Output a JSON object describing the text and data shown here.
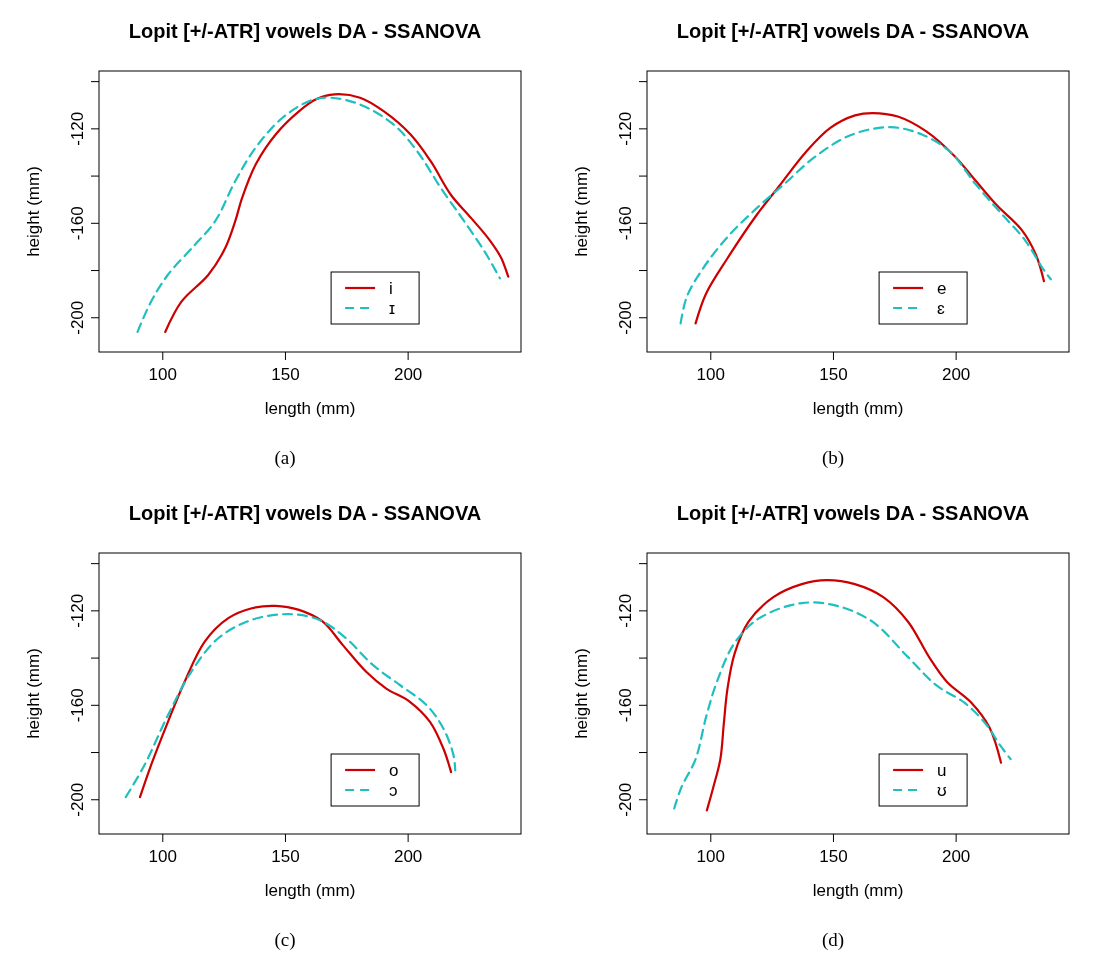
{
  "chart_data": [
    {
      "type": "line",
      "title": "Lopit [+/-ATR] vowels DA - SSANOVA",
      "xlabel": "length (mm)",
      "ylabel": "height (mm)",
      "xlim": [
        74,
        246
      ],
      "ylim": [
        -214.5,
        -95.5
      ],
      "xticks": [
        100,
        150,
        200
      ],
      "yticks": [
        {
          "value": -100,
          "label": null
        },
        -120,
        {
          "value": -140,
          "label": null
        },
        -160,
        {
          "value": -180,
          "label": null
        },
        -200
      ],
      "legend": "bottom right",
      "annotations": [
        "(a)"
      ],
      "series": [
        {
          "name": "i",
          "color": "#cc0000",
          "line_style": "solid",
          "x": [
            101,
            107.6,
            118.5,
            125.4,
            129.5,
            132.3,
            137.8,
            146,
            155.6,
            162.5,
            170,
            180.4,
            190,
            201,
            209.2,
            217.4,
            225.7,
            232.6,
            238,
            240.8
          ],
          "values": [
            -206,
            -193.2,
            -181.9,
            -170.6,
            -159.2,
            -149.3,
            -135.2,
            -122.4,
            -112.5,
            -107.5,
            -105.4,
            -106.8,
            -112.5,
            -122.4,
            -133.7,
            -147.9,
            -157.8,
            -166.3,
            -174.8,
            -182.6
          ]
        },
        {
          "name": "ɪ",
          "color": "#1fbfbf",
          "line_style": "dashed",
          "x": [
            89.7,
            95.2,
            102,
            113,
            121.3,
            129.5,
            137.8,
            148.8,
            159.8,
            168,
            180.4,
            194.1,
            203.7,
            213.3,
            222.9,
            231.2,
            237.4
          ],
          "values": [
            -206,
            -193.2,
            -181.9,
            -169.2,
            -159.2,
            -142.2,
            -128,
            -115.3,
            -108.2,
            -106.8,
            -109.7,
            -118.2,
            -129.5,
            -145,
            -159.2,
            -172,
            -183.3
          ]
        }
      ]
    },
    {
      "type": "line",
      "title": "Lopit [+/-ATR] vowels DA - SSANOVA",
      "xlabel": "length (mm)",
      "ylabel": "height (mm)",
      "xlim": [
        74,
        246
      ],
      "ylim": [
        -214.5,
        -95.5
      ],
      "xticks": [
        100,
        150,
        200
      ],
      "yticks": [
        {
          "value": -100,
          "label": null
        },
        -120,
        {
          "value": -140,
          "label": null
        },
        -160,
        {
          "value": -180,
          "label": null
        },
        -200
      ],
      "legend": "bottom right",
      "annotations": [
        "(b)"
      ],
      "series": [
        {
          "name": "e",
          "color": "#cc0000",
          "line_style": "solid",
          "x": [
            93.8,
            98.1,
            106.8,
            118.4,
            128.5,
            138.6,
            148.7,
            158.8,
            166,
            176.2,
            187.7,
            199.3,
            207.9,
            216.6,
            226.7,
            232.5,
            235.8
          ],
          "values": [
            -202.4,
            -189.7,
            -174.8,
            -156.9,
            -143.4,
            -130,
            -119.6,
            -114.3,
            -113.3,
            -114.8,
            -121,
            -131.5,
            -141.9,
            -152.4,
            -162.8,
            -173.3,
            -184.5
          ]
        },
        {
          "name": "ɛ",
          "color": "#1fbfbf",
          "line_style": "dashed",
          "x": [
            87.7,
            90.2,
            96.7,
            106.8,
            118.4,
            129.9,
            142.9,
            157.4,
            173.3,
            186.3,
            197.8,
            207.9,
            218,
            228.2,
            235.4,
            238.6
          ],
          "values": [
            -202.4,
            -191.2,
            -179.3,
            -165.8,
            -153.9,
            -143.4,
            -131.5,
            -122.5,
            -119.3,
            -122.5,
            -130,
            -143.4,
            -155.4,
            -167.3,
            -179.3,
            -183.7
          ]
        }
      ]
    },
    {
      "type": "line",
      "title": "Lopit [+/-ATR] vowels DA - SSANOVA",
      "xlabel": "length (mm)",
      "ylabel": "height (mm)",
      "xlim": [
        74,
        246
      ],
      "ylim": [
        -214.5,
        -95.5
      ],
      "xticks": [
        100,
        150,
        200
      ],
      "yticks": [
        {
          "value": -100,
          "label": null
        },
        -120,
        {
          "value": -140,
          "label": null
        },
        -160,
        {
          "value": -180,
          "label": null
        },
        -200
      ],
      "legend": "bottom right",
      "annotations": [
        "(c)"
      ],
      "series": [
        {
          "name": "o",
          "color": "#cc0000",
          "line_style": "solid",
          "x": [
            90.7,
            95.2,
            102.1,
            108.9,
            117.1,
            126.7,
            136.3,
            145.9,
            155.5,
            165.1,
            173.3,
            182.9,
            191.1,
            200.7,
            208.9,
            214.4,
            217.5
          ],
          "values": [
            -198.9,
            -185.4,
            -167,
            -150,
            -133,
            -123.1,
            -118.9,
            -117.9,
            -119.6,
            -124.5,
            -134.4,
            -145.8,
            -152.9,
            -158.5,
            -167,
            -178.4,
            -188.3
          ]
        },
        {
          "name": "ɔ",
          "color": "#1fbfbf",
          "line_style": "dashed",
          "x": [
            84.9,
            92.5,
            102.1,
            111.6,
            122.6,
            136.3,
            151.4,
            163.7,
            174.7,
            185.6,
            196.6,
            207.5,
            214.4,
            218.5,
            219.2
          ],
          "values": [
            -198.9,
            -185.4,
            -164.2,
            -145.8,
            -131.6,
            -123.8,
            -121.4,
            -123.8,
            -131.6,
            -142.9,
            -151.4,
            -159.9,
            -169.9,
            -181.2,
            -187.6
          ]
        }
      ]
    },
    {
      "type": "line",
      "title": "Lopit [+/-ATR] vowels DA - SSANOVA",
      "xlabel": "length (mm)",
      "ylabel": "height (mm)",
      "xlim": [
        74,
        246
      ],
      "ylim": [
        -214.5,
        -95.5
      ],
      "xticks": [
        100,
        150,
        200
      ],
      "yticks": [
        {
          "value": -100,
          "label": null
        },
        -120,
        {
          "value": -140,
          "label": null
        },
        -160,
        {
          "value": -180,
          "label": null
        },
        -200
      ],
      "legend": "bottom right",
      "annotations": [
        "(d)"
      ],
      "series": [
        {
          "name": "u",
          "color": "#cc0000",
          "line_style": "solid",
          "x": [
            98.4,
            101,
            103.9,
            105.3,
            106.8,
            109.7,
            115.4,
            125.5,
            137.1,
            147.2,
            158.7,
            170.3,
            180.4,
            189,
            196.2,
            206.3,
            213.6,
            218.3
          ],
          "values": [
            -204.5,
            -194.8,
            -182.8,
            -167.9,
            -153,
            -138.1,
            -124.6,
            -114.2,
            -108.7,
            -107,
            -108.7,
            -114.2,
            -124.6,
            -139.6,
            -150,
            -159,
            -169.4,
            -184.3
          ]
        },
        {
          "name": "ʊ",
          "color": "#1fbfbf",
          "line_style": "dashed",
          "x": [
            85.1,
            88,
            93.8,
            98.1,
            102.5,
            109.7,
            119.8,
            137.1,
            151.5,
            165.9,
            180.4,
            191.9,
            203.5,
            212.1,
            217.9,
            222.2
          ],
          "values": [
            -203.7,
            -194.8,
            -182.8,
            -164.9,
            -150,
            -133.6,
            -123.1,
            -116.7,
            -117.9,
            -124.6,
            -139.6,
            -151.5,
            -159,
            -167.9,
            -176.9,
            -182.8
          ]
        }
      ]
    }
  ]
}
